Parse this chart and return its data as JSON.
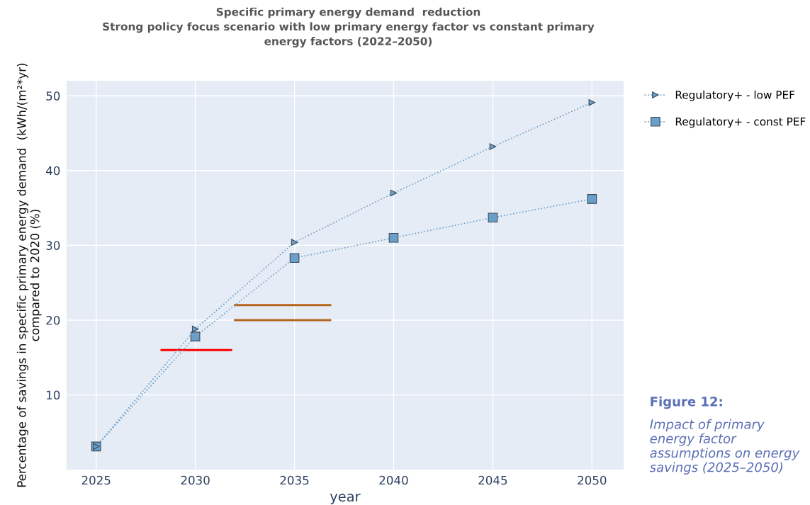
{
  "chart_data": {
    "type": "line",
    "title": "Specific primary energy demand  reduction\nStrong policy focus scenario with low primary energy factor vs constant primary\nenergy factors (2022–2050)",
    "xlabel": "year",
    "ylabel": "Percentage of savings in specific primary energy demand  (kWh/(m²*yr)\ncompared to 2020 (%)",
    "x": [
      2025,
      2030,
      2035,
      2040,
      2045,
      2050
    ],
    "series": [
      {
        "name": "Regulatory+ - low PEF",
        "color": "#6a9fc9",
        "marker": "triangle",
        "line_style": "dotted",
        "values": [
          3.1,
          18.8,
          30.4,
          37.0,
          43.2,
          49.1
        ]
      },
      {
        "name": "Regulatory+ - const PEF",
        "color": "#6a9fc9",
        "marker": "square",
        "line_style": "dotted",
        "values": [
          3.1,
          17.8,
          28.3,
          31.0,
          33.7,
          36.2
        ]
      },
      {
        "color": "#ff0000",
        "marker": "none",
        "line_style": "solid",
        "x": [
          2028.3,
          2031.8
        ],
        "values": [
          16,
          16
        ]
      },
      {
        "color": "#b5651d",
        "marker": "none",
        "line_style": "solid",
        "x": [
          2032.0,
          2036.8
        ],
        "values": [
          22,
          22
        ]
      },
      {
        "color": "#b5651d",
        "marker": "none",
        "line_style": "solid",
        "x": [
          2032.0,
          2036.8
        ],
        "values": [
          20,
          20
        ]
      }
    ],
    "xlim": [
      2023.5,
      2051.6
    ],
    "ylim": [
      0,
      52
    ],
    "xticks": [
      2025,
      2030,
      2035,
      2040,
      2045,
      2050
    ],
    "yticks": [
      10,
      20,
      30,
      40,
      50
    ],
    "grid": true,
    "legend": "top right",
    "annotations": [
      "Figure 12:",
      "Impact of primary energy factor assumptions on energy savings (2025–2050)"
    ]
  }
}
